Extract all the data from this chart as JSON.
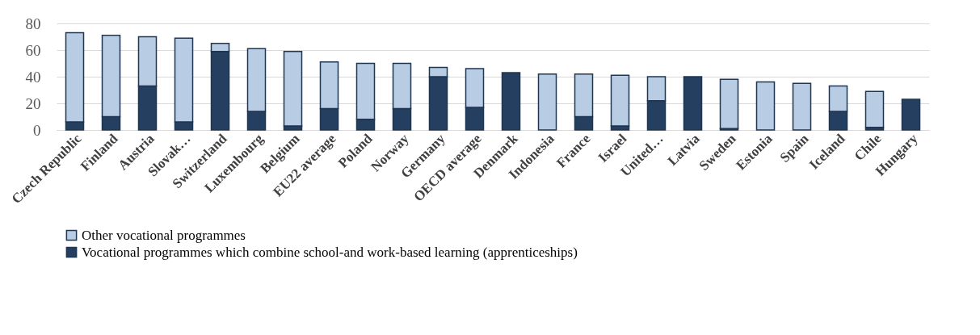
{
  "chart_data": {
    "type": "bar",
    "stacked": true,
    "categories": [
      "Czech Republic",
      "Finland",
      "Austria",
      "Slovak…",
      "Switzerland",
      "Luxembourg",
      "Belgium",
      "EU22 average",
      "Poland",
      "Norway",
      "Germany",
      "OECD average",
      "Denmark",
      "Indonesia",
      "France",
      "Israel",
      "United…",
      "Latvia",
      "Sweden",
      "Estonia",
      "Spain",
      "Iceland",
      "Chile",
      "Hungary"
    ],
    "series": [
      {
        "name": "Vocational programmes which combine school-and work-based learning (apprenticeships)",
        "color": "#243f60",
        "values": [
          6,
          10,
          33,
          6,
          59,
          14,
          3,
          16,
          8,
          16,
          40,
          17,
          43,
          0,
          10,
          3,
          22,
          40,
          1,
          0,
          0,
          14,
          2,
          23
        ]
      },
      {
        "name": "Other vocational programmes",
        "color": "#b8cce4",
        "values": [
          67,
          61,
          37,
          63,
          6,
          47,
          56,
          35,
          42,
          34,
          7,
          29,
          0,
          42,
          32,
          38,
          18,
          0,
          37,
          36,
          35,
          19,
          27,
          0
        ]
      }
    ],
    "ylim": [
      0,
      80
    ],
    "yticks": [
      0,
      20,
      40,
      60,
      80
    ],
    "grid": "y",
    "legend": "bottom"
  }
}
